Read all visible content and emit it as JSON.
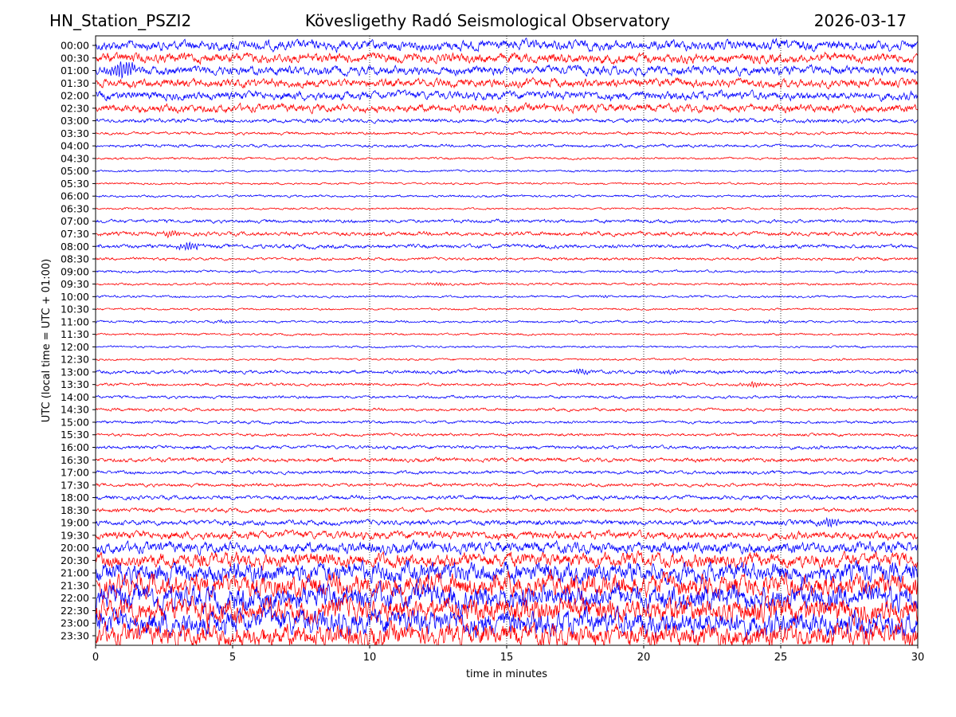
{
  "header": {
    "station": "HN_Station_PSZI2",
    "observatory": "Kövesligethy Radó Seismological Observatory",
    "date": "2026-03-17"
  },
  "colors": {
    "trace_a": "#0000ff",
    "trace_b": "#ff0000",
    "grid": "#000000",
    "axis": "#000000"
  },
  "chart_data": {
    "type": "line",
    "title": "",
    "xlabel": "time in minutes",
    "ylabel": "UTC (local time = UTC + 01:00)",
    "xlim": [
      0,
      30
    ],
    "x_ticks": [
      "0",
      "5",
      "10",
      "15",
      "20",
      "25",
      "30"
    ],
    "x_gridlines": [
      5,
      10,
      15,
      20,
      25
    ],
    "grid": "vertical dotted",
    "rows": [
      "00:00",
      "00:30",
      "01:00",
      "01:30",
      "02:00",
      "02:30",
      "03:00",
      "03:30",
      "04:00",
      "04:30",
      "05:00",
      "05:30",
      "06:00",
      "06:30",
      "07:00",
      "07:30",
      "08:00",
      "08:30",
      "09:00",
      "09:30",
      "10:00",
      "10:30",
      "11:00",
      "11:30",
      "12:00",
      "12:30",
      "13:00",
      "13:30",
      "14:00",
      "14:30",
      "15:00",
      "15:30",
      "16:00",
      "16:30",
      "17:00",
      "17:30",
      "18:00",
      "18:30",
      "19:00",
      "19:30",
      "20:00",
      "20:30",
      "21:00",
      "21:30",
      "22:00",
      "22:30",
      "23:00",
      "23:30"
    ],
    "row_colors": "alternating trace_a / trace_b starting with trace_a",
    "relative_amplitude": [
      0.9,
      0.85,
      0.8,
      0.75,
      0.75,
      0.7,
      0.35,
      0.25,
      0.25,
      0.2,
      0.18,
      0.18,
      0.2,
      0.18,
      0.3,
      0.35,
      0.35,
      0.25,
      0.22,
      0.2,
      0.2,
      0.18,
      0.2,
      0.18,
      0.18,
      0.18,
      0.3,
      0.25,
      0.25,
      0.25,
      0.25,
      0.25,
      0.3,
      0.35,
      0.3,
      0.3,
      0.35,
      0.35,
      0.45,
      0.7,
      1.0,
      1.3,
      1.8,
      2.0,
      2.2,
      2.2,
      2.2,
      2.0
    ],
    "events": [
      {
        "row": "01:00",
        "x": 1.0,
        "strength": 2.5
      },
      {
        "row": "07:30",
        "x": 2.8,
        "strength": 2.0
      },
      {
        "row": "08:00",
        "x": 3.4,
        "strength": 3.0
      },
      {
        "row": "09:30",
        "x": 12.5,
        "strength": 1.5
      },
      {
        "row": "10:00",
        "x": 18.6,
        "strength": 1.5
      },
      {
        "row": "11:00",
        "x": 4.8,
        "strength": 1.5
      },
      {
        "row": "11:00",
        "x": 24.8,
        "strength": 1.5
      },
      {
        "row": "13:00",
        "x": 17.8,
        "strength": 1.8
      },
      {
        "row": "13:00",
        "x": 21.0,
        "strength": 1.8
      },
      {
        "row": "13:30",
        "x": 24.0,
        "strength": 2.5
      },
      {
        "row": "19:00",
        "x": 26.8,
        "strength": 2.0
      }
    ]
  }
}
